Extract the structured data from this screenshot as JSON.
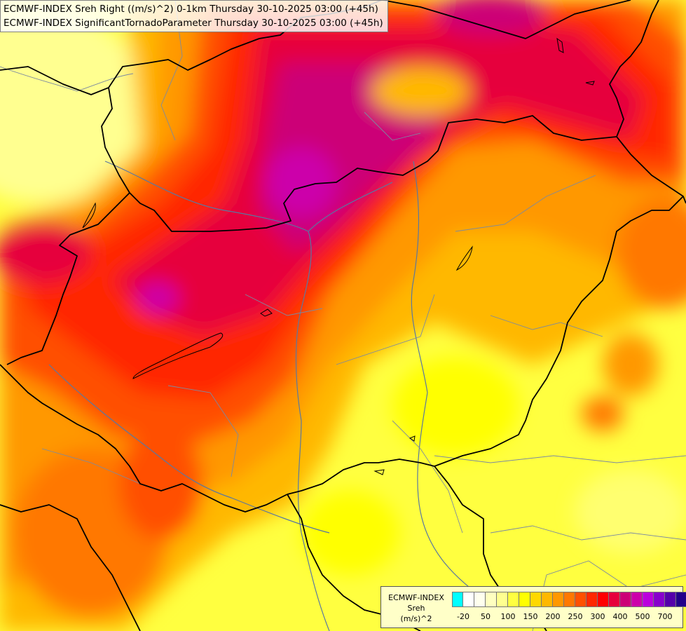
{
  "titles": {
    "line1": "ECMWF-INDEX Sreh Right ((m/s)^2) 0-1km Thursday 30-10-2025 03:00 (+45h)",
    "line2": "ECMWF-INDEX SignificantTornadoParameter Thursday 30-10-2025 03:00 (+45h)"
  },
  "legend": {
    "model": "ECMWF-INDEX",
    "parameter": "Sreh",
    "unit": "(m/s)^2",
    "colors": [
      "#00ffff",
      "#ffffff",
      "#ffffee",
      "#ffffc0",
      "#ffff90",
      "#ffff40",
      "#ffff00",
      "#ffd800",
      "#ffb800",
      "#ff9800",
      "#ff7800",
      "#ff5000",
      "#ff2800",
      "#ff0000",
      "#e6003c",
      "#cc0077",
      "#cc00aa",
      "#bb00dd",
      "#8800cc",
      "#5500aa",
      "#22008a"
    ],
    "tick_labels": [
      "-20",
      "50",
      "100",
      "150",
      "200",
      "250",
      "300",
      "400",
      "500",
      "700"
    ]
  },
  "colors": {
    "border": "#000000",
    "river": "#5a78a0",
    "admin": "#7c8aa0"
  }
}
